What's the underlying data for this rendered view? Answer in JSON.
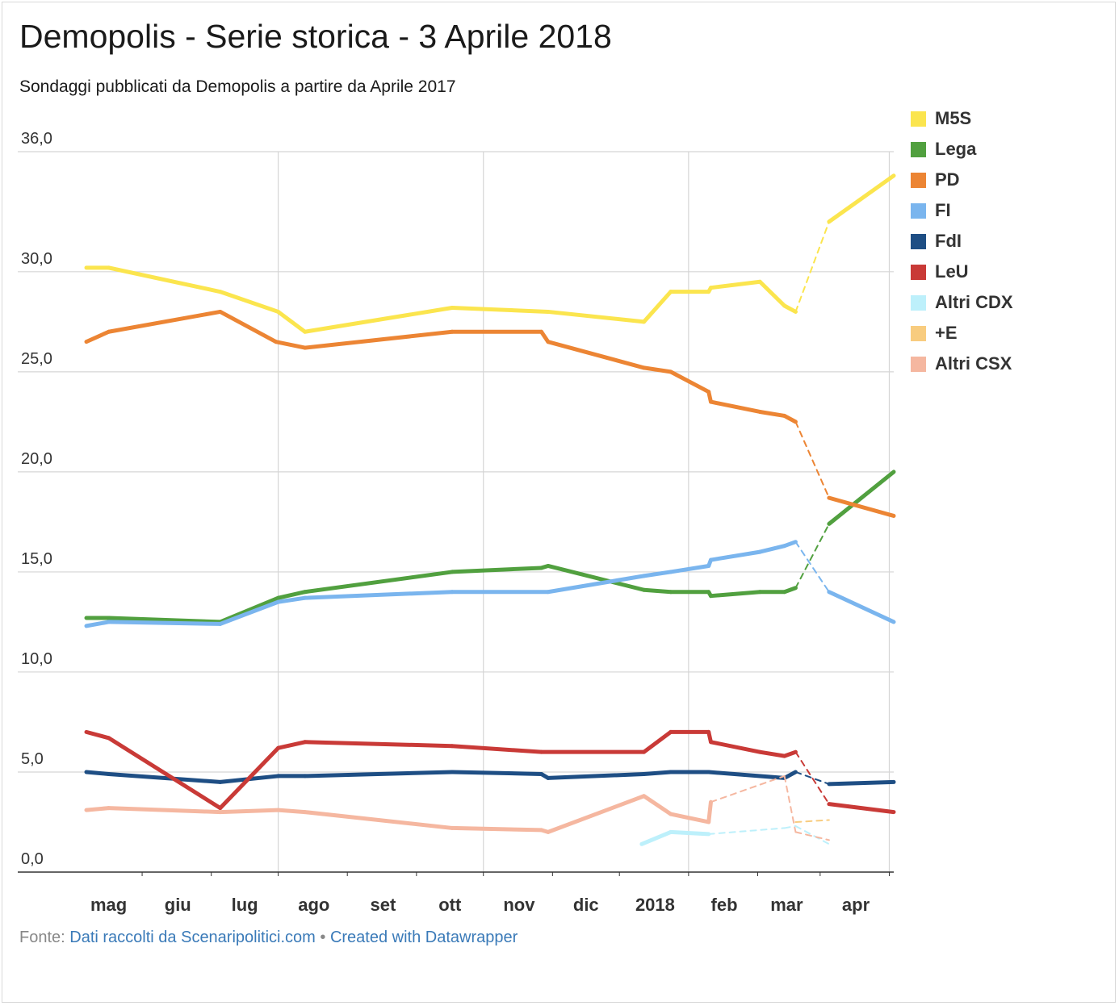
{
  "title": "Demopolis - Serie storica - 3 Aprile 2018",
  "subtitle": "Sondaggi pubblicati da Demopolis a partire da Aprile 2017",
  "footer": {
    "prefix": "Fonte: ",
    "source_link": "Dati raccolti da Scenaripolitici.com",
    "separator": " • ",
    "created_link": "Created with Datawrapper"
  },
  "chart_data": {
    "type": "line",
    "title": "Demopolis - Serie storica - 3 Aprile 2018",
    "subtitle": "Sondaggi pubblicati da Demopolis a partire da Aprile 2017",
    "xlabel": "",
    "ylabel": "",
    "ylim": [
      0,
      36
    ],
    "xlim": [
      "2017-04-06",
      "2018-04-03"
    ],
    "grid": true,
    "legend_position": "right",
    "y_ticks": [
      "0,0",
      "5,0",
      "10,0",
      "15,0",
      "20,0",
      "25,0",
      "30,0",
      "36,0"
    ],
    "y_tick_values": [
      0,
      5,
      10,
      15,
      20,
      25,
      30,
      36
    ],
    "x_ticks": [
      "mag",
      "giu",
      "lug",
      "ago",
      "set",
      "ott",
      "nov",
      "dic",
      "2018",
      "feb",
      "mar",
      "apr"
    ],
    "x_tick_dates": [
      "2017-05-01",
      "2017-06-01",
      "2017-07-01",
      "2017-08-01",
      "2017-09-01",
      "2017-10-01",
      "2017-11-01",
      "2017-12-01",
      "2018-01-01",
      "2018-02-01",
      "2018-03-01",
      "2018-04-01"
    ],
    "x_gridlines": [
      "2017-07-01",
      "2017-10-01",
      "2018-01-01",
      "2018-04-01"
    ],
    "series": [
      {
        "name": "M5S",
        "color": "#fbe54e",
        "points": [
          [
            "2017-04-06",
            30.2
          ],
          [
            "2017-04-16",
            30.2
          ],
          [
            "2017-06-05",
            29.0
          ],
          [
            "2017-07-01",
            28.0
          ],
          [
            "2017-07-13",
            27.0
          ],
          [
            "2017-09-17",
            28.2
          ],
          [
            "2017-10-30",
            28.0
          ],
          [
            "2017-12-12",
            27.5
          ],
          [
            "2017-12-24",
            29.0
          ],
          [
            "2018-01-10",
            29.0
          ],
          [
            "2018-01-11",
            29.2
          ],
          [
            "2018-02-02",
            29.5
          ],
          [
            "2018-02-13",
            28.3
          ],
          [
            "2018-02-18",
            28.0
          ],
          [
            "2018-03-05",
            32.5
          ],
          [
            "2018-04-03",
            34.8
          ]
        ],
        "dashed_segment": [
          "2018-02-18",
          "2018-03-05"
        ]
      },
      {
        "name": "Lega",
        "color": "#51a03f",
        "points": [
          [
            "2017-04-06",
            12.7
          ],
          [
            "2017-04-16",
            12.7
          ],
          [
            "2017-06-05",
            12.5
          ],
          [
            "2017-07-01",
            13.7
          ],
          [
            "2017-07-13",
            14.0
          ],
          [
            "2017-09-17",
            15.0
          ],
          [
            "2017-10-27",
            15.2
          ],
          [
            "2017-10-30",
            15.3
          ],
          [
            "2017-12-12",
            14.1
          ],
          [
            "2017-12-24",
            14.0
          ],
          [
            "2018-01-10",
            14.0
          ],
          [
            "2018-01-11",
            13.8
          ],
          [
            "2018-02-02",
            14.0
          ],
          [
            "2018-02-13",
            14.0
          ],
          [
            "2018-02-18",
            14.2
          ],
          [
            "2018-03-05",
            17.4
          ],
          [
            "2018-04-03",
            20.0
          ]
        ],
        "dashed_segment": [
          "2018-02-18",
          "2018-03-05"
        ]
      },
      {
        "name": "PD",
        "color": "#ec8534",
        "points": [
          [
            "2017-04-06",
            26.5
          ],
          [
            "2017-04-16",
            27.0
          ],
          [
            "2017-06-05",
            28.0
          ],
          [
            "2017-06-30",
            26.5
          ],
          [
            "2017-07-13",
            26.2
          ],
          [
            "2017-09-17",
            27.0
          ],
          [
            "2017-10-27",
            27.0
          ],
          [
            "2017-10-30",
            26.5
          ],
          [
            "2017-12-12",
            25.2
          ],
          [
            "2017-12-24",
            25.0
          ],
          [
            "2018-01-10",
            24.0
          ],
          [
            "2018-01-11",
            23.5
          ],
          [
            "2018-02-02",
            23.0
          ],
          [
            "2018-02-13",
            22.8
          ],
          [
            "2018-02-18",
            22.5
          ],
          [
            "2018-03-05",
            18.7
          ],
          [
            "2018-04-03",
            17.8
          ]
        ],
        "dashed_segment": [
          "2018-02-18",
          "2018-03-05"
        ]
      },
      {
        "name": "FI",
        "color": "#7ab5ee",
        "points": [
          [
            "2017-04-06",
            12.3
          ],
          [
            "2017-04-16",
            12.5
          ],
          [
            "2017-06-05",
            12.4
          ],
          [
            "2017-07-01",
            13.5
          ],
          [
            "2017-07-13",
            13.7
          ],
          [
            "2017-09-17",
            14.0
          ],
          [
            "2017-10-30",
            14.0
          ],
          [
            "2017-12-12",
            14.8
          ],
          [
            "2017-12-24",
            15.0
          ],
          [
            "2018-01-10",
            15.3
          ],
          [
            "2018-01-11",
            15.6
          ],
          [
            "2018-02-02",
            16.0
          ],
          [
            "2018-02-13",
            16.3
          ],
          [
            "2018-02-18",
            16.5
          ],
          [
            "2018-03-05",
            14.0
          ],
          [
            "2018-04-03",
            12.5
          ]
        ],
        "dashed_segment": [
          "2018-02-18",
          "2018-03-05"
        ]
      },
      {
        "name": "FdI",
        "color": "#1e4e84",
        "points": [
          [
            "2017-04-06",
            5.0
          ],
          [
            "2017-04-16",
            4.9
          ],
          [
            "2017-06-05",
            4.5
          ],
          [
            "2017-07-01",
            4.8
          ],
          [
            "2017-07-13",
            4.8
          ],
          [
            "2017-09-17",
            5.0
          ],
          [
            "2017-10-27",
            4.9
          ],
          [
            "2017-10-30",
            4.7
          ],
          [
            "2017-12-12",
            4.9
          ],
          [
            "2017-12-24",
            5.0
          ],
          [
            "2018-01-10",
            5.0
          ],
          [
            "2018-02-13",
            4.7
          ],
          [
            "2018-02-18",
            5.0
          ],
          [
            "2018-03-05",
            4.4
          ],
          [
            "2018-04-03",
            4.5
          ]
        ],
        "dashed_segment": [
          "2018-02-18",
          "2018-03-05"
        ]
      },
      {
        "name": "LeU",
        "color": "#c93a37",
        "points": [
          [
            "2017-04-06",
            7.0
          ],
          [
            "2017-04-16",
            6.7
          ],
          [
            "2017-06-05",
            3.2
          ],
          [
            "2017-07-01",
            6.2
          ],
          [
            "2017-07-13",
            6.5
          ],
          [
            "2017-09-17",
            6.3
          ],
          [
            "2017-10-27",
            6.0
          ],
          [
            "2017-12-12",
            6.0
          ],
          [
            "2017-12-24",
            7.0
          ],
          [
            "2018-01-10",
            7.0
          ],
          [
            "2018-01-11",
            6.5
          ],
          [
            "2018-02-02",
            6.0
          ],
          [
            "2018-02-13",
            5.8
          ],
          [
            "2018-02-18",
            6.0
          ],
          [
            "2018-03-05",
            3.4
          ],
          [
            "2018-04-03",
            3.0
          ]
        ],
        "dashed_segment": [
          "2018-02-18",
          "2018-03-05"
        ]
      },
      {
        "name": "Altri CDX",
        "color": "#bdf0fb",
        "points": [
          [
            "2017-12-11",
            1.4
          ],
          [
            "2017-12-24",
            2.0
          ],
          [
            "2018-01-10",
            1.9
          ],
          [
            "2018-02-13",
            2.2
          ],
          [
            "2018-02-18",
            2.3
          ],
          [
            "2018-03-05",
            1.4
          ]
        ],
        "dashed_segment": [
          "2018-01-10",
          "2018-03-05"
        ]
      },
      {
        "name": "+E",
        "color": "#f8cc7f",
        "points": [
          [
            "2018-02-18",
            2.5
          ],
          [
            "2018-03-05",
            2.6
          ]
        ],
        "dashed_segment": [
          "2018-02-18",
          "2018-03-05"
        ]
      },
      {
        "name": "Altri CSX",
        "color": "#f5b7a0",
        "points": [
          [
            "2017-04-06",
            3.1
          ],
          [
            "2017-04-16",
            3.2
          ],
          [
            "2017-06-05",
            3.0
          ],
          [
            "2017-07-01",
            3.1
          ],
          [
            "2017-07-13",
            3.0
          ],
          [
            "2017-09-17",
            2.2
          ],
          [
            "2017-10-27",
            2.1
          ],
          [
            "2017-10-30",
            2.0
          ],
          [
            "2017-12-12",
            3.8
          ],
          [
            "2017-12-24",
            2.9
          ],
          [
            "2018-01-10",
            2.5
          ],
          [
            "2018-01-11",
            3.5
          ],
          [
            "2018-02-13",
            4.8
          ],
          [
            "2018-02-18",
            2.0
          ],
          [
            "2018-03-05",
            1.6
          ]
        ],
        "dashed_segment": [
          "2018-01-11",
          "2018-03-05"
        ]
      }
    ]
  }
}
